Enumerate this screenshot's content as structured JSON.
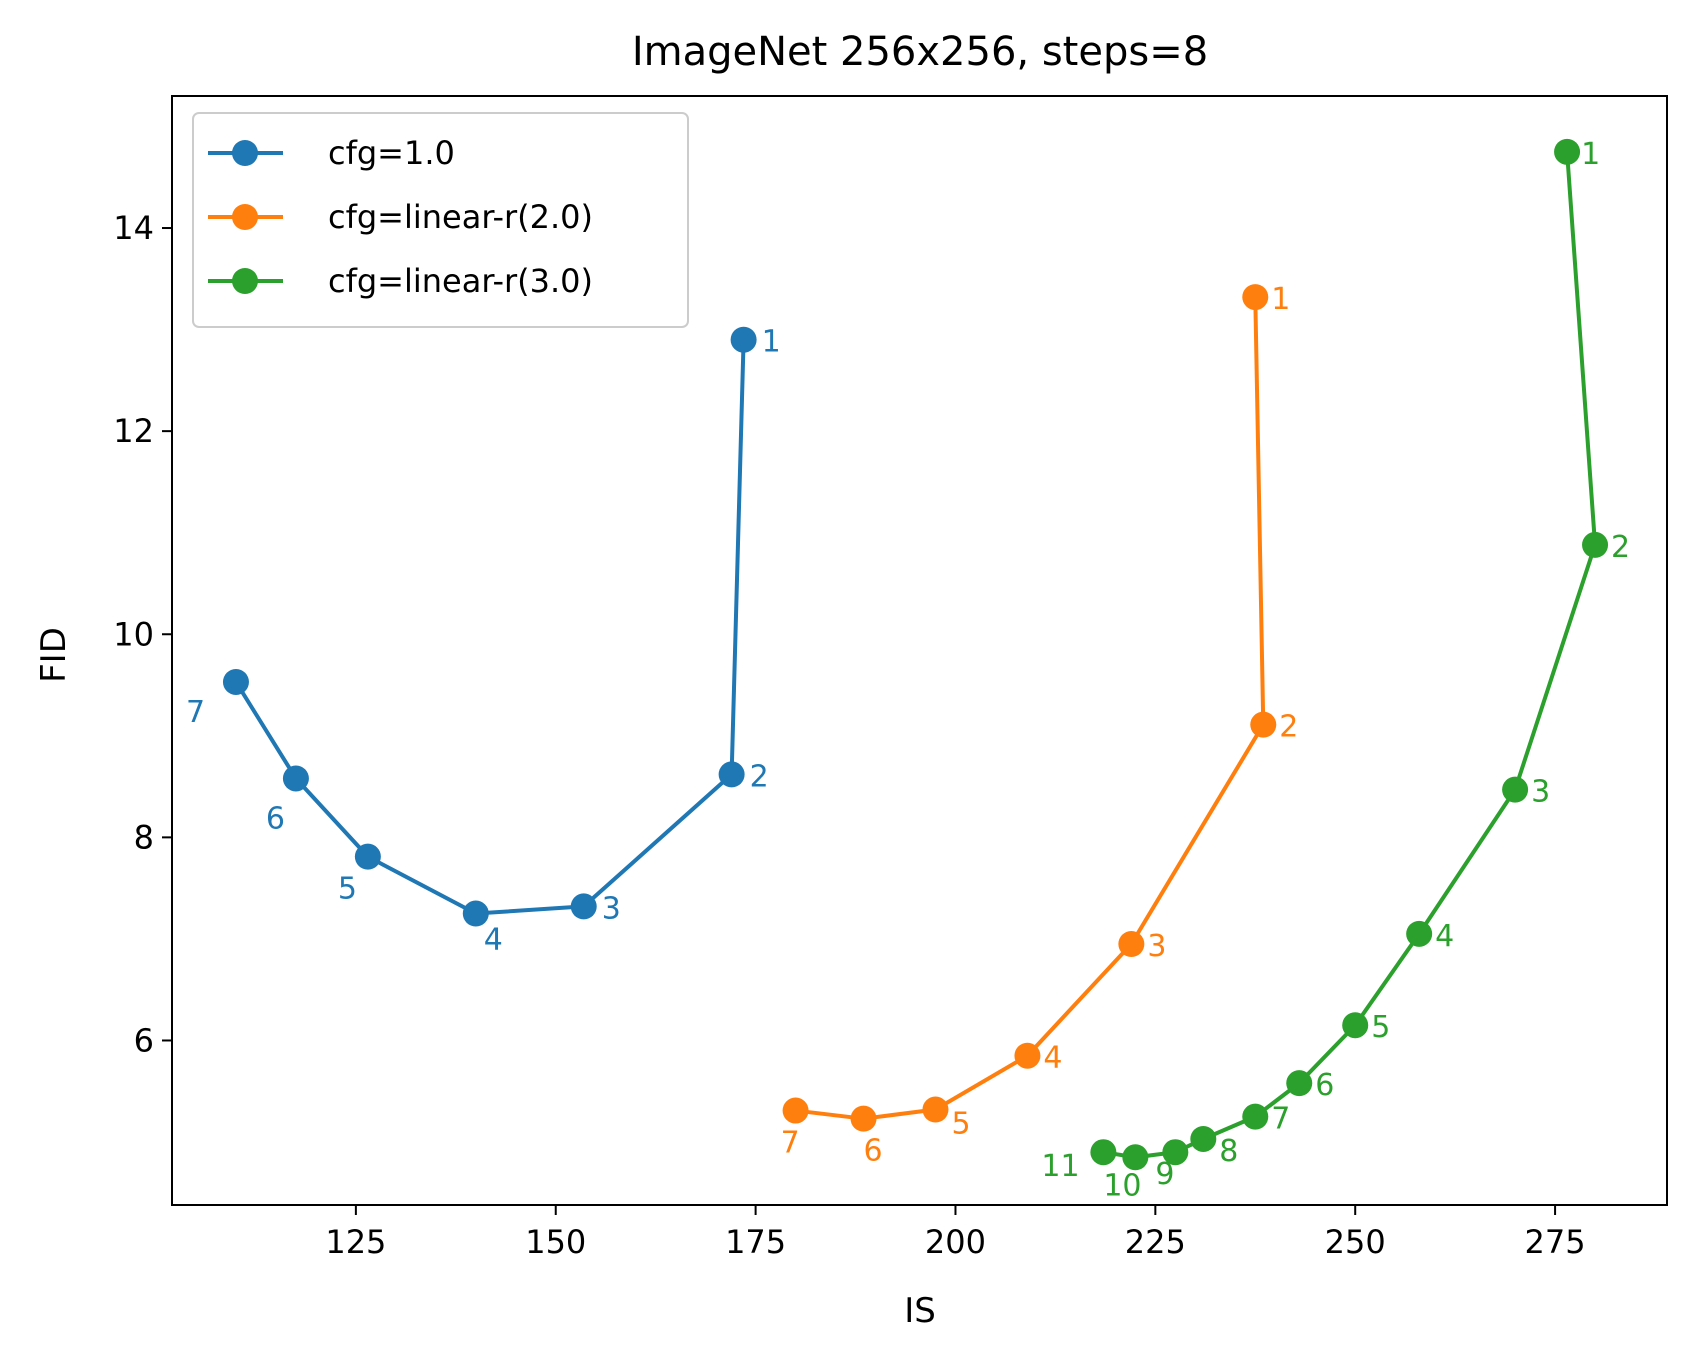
{
  "chart_data": {
    "type": "line",
    "title": "ImageNet 256x256, steps=8",
    "xlabel": "IS",
    "ylabel": "FID",
    "xlim": [
      102,
      289
    ],
    "ylim": [
      4.38,
      15.3
    ],
    "xticks": [
      125,
      150,
      175,
      200,
      225,
      250,
      275
    ],
    "yticks": [
      6,
      8,
      10,
      12,
      14
    ],
    "grid": false,
    "legend_position": "top-left",
    "series": [
      {
        "name": "cfg=1.0",
        "color": "#1f77b4",
        "points": [
          {
            "x": 173.5,
            "y": 12.9,
            "label": "1"
          },
          {
            "x": 172.0,
            "y": 8.62,
            "label": "2"
          },
          {
            "x": 153.5,
            "y": 7.32,
            "label": "3"
          },
          {
            "x": 140.0,
            "y": 7.25,
            "label": "4"
          },
          {
            "x": 126.5,
            "y": 7.81,
            "label": "5"
          },
          {
            "x": 117.5,
            "y": 8.58,
            "label": "6"
          },
          {
            "x": 110.0,
            "y": 9.53,
            "label": "7"
          }
        ]
      },
      {
        "name": "cfg=linear-r(2.0)",
        "color": "#ff7f0e",
        "points": [
          {
            "x": 237.5,
            "y": 13.32,
            "label": "1"
          },
          {
            "x": 238.5,
            "y": 9.11,
            "label": "2"
          },
          {
            "x": 222.0,
            "y": 6.95,
            "label": "3"
          },
          {
            "x": 209.0,
            "y": 5.85,
            "label": "4"
          },
          {
            "x": 197.5,
            "y": 5.32,
            "label": "5"
          },
          {
            "x": 188.5,
            "y": 5.23,
            "label": "6"
          },
          {
            "x": 180.0,
            "y": 5.31,
            "label": "7"
          }
        ]
      },
      {
        "name": "cfg=linear-r(3.0)",
        "color": "#2ca02c",
        "points": [
          {
            "x": 276.5,
            "y": 14.75,
            "label": "1"
          },
          {
            "x": 280.0,
            "y": 10.88,
            "label": "2"
          },
          {
            "x": 270.0,
            "y": 8.47,
            "label": "3"
          },
          {
            "x": 258.0,
            "y": 7.05,
            "label": "4"
          },
          {
            "x": 250.0,
            "y": 6.15,
            "label": "5"
          },
          {
            "x": 243.0,
            "y": 5.58,
            "label": "6"
          },
          {
            "x": 237.5,
            "y": 5.25,
            "label": "7"
          },
          {
            "x": 231.0,
            "y": 5.03,
            "label": "8"
          },
          {
            "x": 227.5,
            "y": 4.9,
            "label": "9"
          },
          {
            "x": 222.5,
            "y": 4.85,
            "label": "10"
          },
          {
            "x": 218.5,
            "y": 4.9,
            "label": "11"
          }
        ]
      }
    ]
  }
}
